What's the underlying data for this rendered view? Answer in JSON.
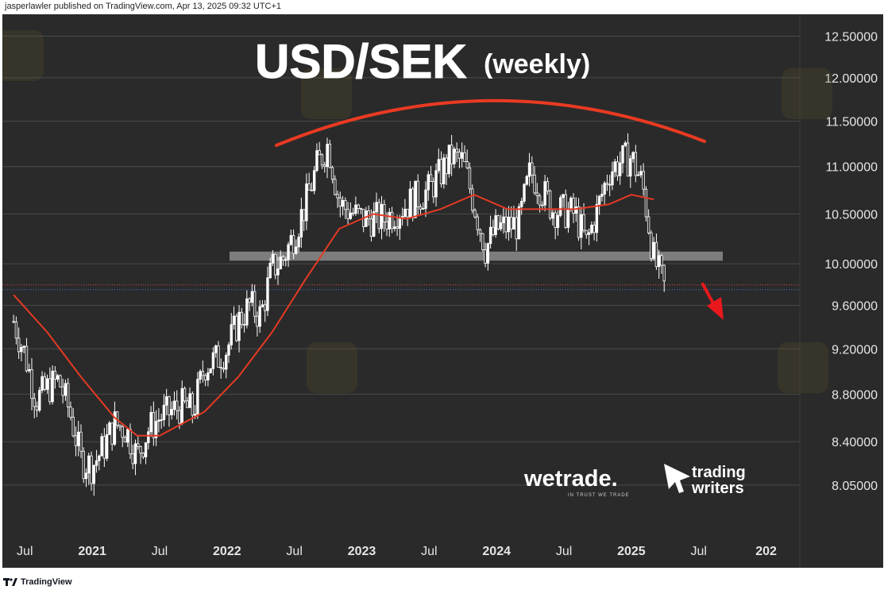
{
  "header": {
    "published_text": "jasperlawler published on TradingView.com, Apr 13, 2025 09:32 UTC+1"
  },
  "footer": {
    "brand": "TradingView"
  },
  "colors": {
    "background": "#2a2a2a",
    "candle": "#ffffff",
    "moving_average": "#e53a23",
    "arc": "#ea3a22",
    "support_band": "#8c8c8c",
    "arrow": "#e8181c",
    "grid": "#4a4a4a"
  },
  "branding": {
    "wetrade": "wetrade.",
    "wetrade_tagline": "IN TRUST WE TRADE",
    "tw_line1": "trading",
    "tw_line2": "writers"
  },
  "chart_data": {
    "type": "candlestick",
    "title": "USD/SEK",
    "subtitle": "(weekly)",
    "y_ticks": [
      "12.50000",
      "12.00000",
      "11.50000",
      "11.00000",
      "10.50000",
      "10.00000",
      "9.60000",
      "9.20000",
      "8.80000",
      "8.40000",
      "8.05000"
    ],
    "x_ticks": [
      "Jul",
      "2021",
      "Jul",
      "2022",
      "Jul",
      "2023",
      "Jul",
      "2024",
      "Jul",
      "2025",
      "Jul",
      "202"
    ],
    "ylim": [
      7.7,
      12.75
    ],
    "xlim": [
      "2020-05",
      "2026-04"
    ],
    "scale": "log",
    "price_path": [
      [
        "2020-06",
        9.45
      ],
      [
        "2020-07",
        9.15
      ],
      [
        "2020-08",
        8.75
      ],
      [
        "2020-09",
        8.85
      ],
      [
        "2020-10",
        8.92
      ],
      [
        "2020-11",
        8.65
      ],
      [
        "2020-12",
        8.25
      ],
      [
        "2021-01",
        8.2
      ],
      [
        "2021-02",
        8.35
      ],
      [
        "2021-03",
        8.55
      ],
      [
        "2021-04",
        8.5
      ],
      [
        "2021-05",
        8.28
      ],
      [
        "2021-06",
        8.5
      ],
      [
        "2021-07",
        8.6
      ],
      [
        "2021-08",
        8.65
      ],
      [
        "2021-09",
        8.7
      ],
      [
        "2021-10",
        8.65
      ],
      [
        "2021-11",
        9.05
      ],
      [
        "2021-12",
        9.1
      ],
      [
        "2022-01",
        9.2
      ],
      [
        "2022-02",
        9.45
      ],
      [
        "2022-03",
        9.6
      ],
      [
        "2022-04",
        9.5
      ],
      [
        "2022-05",
        9.95
      ],
      [
        "2022-06",
        10.05
      ],
      [
        "2022-07",
        10.3
      ],
      [
        "2022-08",
        10.6
      ],
      [
        "2022-09",
        11.0
      ],
      [
        "2022-10",
        11.25
      ],
      [
        "2022-11",
        10.6
      ],
      [
        "2023-01",
        10.45
      ],
      [
        "2023-03",
        10.45
      ],
      [
        "2023-05",
        10.6
      ],
      [
        "2023-07",
        10.75
      ],
      [
        "2023-09",
        11.1
      ],
      [
        "2023-10",
        11.05
      ],
      [
        "2023-11",
        10.6
      ],
      [
        "2023-12",
        10.15
      ],
      [
        "2024-01",
        10.35
      ],
      [
        "2024-03",
        10.4
      ],
      [
        "2024-04",
        10.95
      ],
      [
        "2024-06",
        10.55
      ],
      [
        "2024-08",
        10.5
      ],
      [
        "2024-09",
        10.2
      ],
      [
        "2024-10",
        10.55
      ],
      [
        "2024-11",
        10.95
      ],
      [
        "2024-12",
        11.05
      ],
      [
        "2025-01",
        11.1
      ],
      [
        "2025-02",
        10.8
      ],
      [
        "2025-03",
        10.05
      ],
      [
        "2025-04",
        9.75
      ]
    ],
    "moving_average": [
      [
        "2020-06",
        9.7
      ],
      [
        "2020-09",
        9.35
      ],
      [
        "2020-12",
        8.95
      ],
      [
        "2021-03",
        8.6
      ],
      [
        "2021-05",
        8.45
      ],
      [
        "2021-07",
        8.45
      ],
      [
        "2021-09",
        8.55
      ],
      [
        "2021-11",
        8.65
      ],
      [
        "2022-02",
        8.95
      ],
      [
        "2022-05",
        9.35
      ],
      [
        "2022-08",
        9.85
      ],
      [
        "2022-11",
        10.35
      ],
      [
        "2023-02",
        10.5
      ],
      [
        "2023-05",
        10.45
      ],
      [
        "2023-08",
        10.55
      ],
      [
        "2023-11",
        10.7
      ],
      [
        "2024-02",
        10.55
      ],
      [
        "2024-05",
        10.55
      ],
      [
        "2024-08",
        10.55
      ],
      [
        "2024-11",
        10.6
      ],
      [
        "2025-01",
        10.7
      ],
      [
        "2025-03",
        10.65
      ]
    ],
    "support_zone": [
      10.03,
      10.12
    ],
    "current_price": 9.75,
    "arc_label": "rounding top",
    "grid": true
  }
}
